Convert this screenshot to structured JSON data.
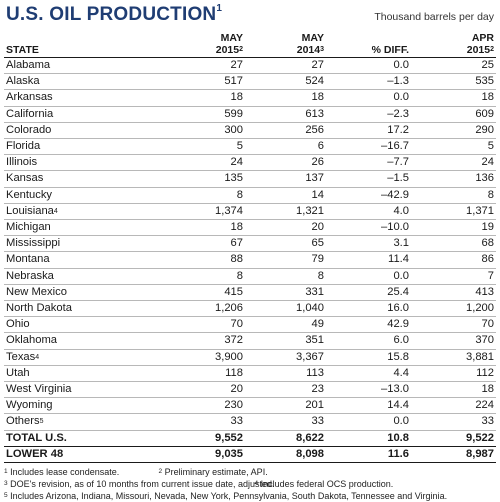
{
  "title": "U.S. OIL PRODUCTION",
  "title_note": "1",
  "units": "Thousand barrels per day",
  "columns": {
    "state": "STATE",
    "may2015_line1": "MAY",
    "may2015_line2": "2015",
    "may2015_note": "2",
    "may2014_line1": "MAY",
    "may2014_line2": "2014",
    "may2014_note": "3",
    "diff_line2": "% DIFF.",
    "apr2015_line1": "APR",
    "apr2015_line2": "2015",
    "apr2015_note": "2"
  },
  "rows": [
    {
      "state": "Alabama",
      "note": "",
      "may2015": "27",
      "may2014": "27",
      "diff": "0.0",
      "apr2015": "25"
    },
    {
      "state": "Alaska",
      "note": "",
      "may2015": "517",
      "may2014": "524",
      "diff": "–1.3",
      "apr2015": "535"
    },
    {
      "state": "Arkansas",
      "note": "",
      "may2015": "18",
      "may2014": "18",
      "diff": "0.0",
      "apr2015": "18"
    },
    {
      "state": "California",
      "note": "",
      "may2015": "599",
      "may2014": "613",
      "diff": "–2.3",
      "apr2015": "609"
    },
    {
      "state": "Colorado",
      "note": "",
      "may2015": "300",
      "may2014": "256",
      "diff": "17.2",
      "apr2015": "290"
    },
    {
      "state": "Florida",
      "note": "",
      "may2015": "5",
      "may2014": "6",
      "diff": "–16.7",
      "apr2015": "5"
    },
    {
      "state": "Illinois",
      "note": "",
      "may2015": "24",
      "may2014": "26",
      "diff": "–7.7",
      "apr2015": "24"
    },
    {
      "state": "Kansas",
      "note": "",
      "may2015": "135",
      "may2014": "137",
      "diff": "–1.5",
      "apr2015": "136"
    },
    {
      "state": "Kentucky",
      "note": "",
      "may2015": "8",
      "may2014": "14",
      "diff": "–42.9",
      "apr2015": "8"
    },
    {
      "state": "Louisiana",
      "note": "4",
      "may2015": "1,374",
      "may2014": "1,321",
      "diff": "4.0",
      "apr2015": "1,371"
    },
    {
      "state": "Michigan",
      "note": "",
      "may2015": "18",
      "may2014": "20",
      "diff": "–10.0",
      "apr2015": "19"
    },
    {
      "state": "Mississippi",
      "note": "",
      "may2015": "67",
      "may2014": "65",
      "diff": "3.1",
      "apr2015": "68"
    },
    {
      "state": "Montana",
      "note": "",
      "may2015": "88",
      "may2014": "79",
      "diff": "11.4",
      "apr2015": "86"
    },
    {
      "state": "Nebraska",
      "note": "",
      "may2015": "8",
      "may2014": "8",
      "diff": "0.0",
      "apr2015": "7"
    },
    {
      "state": "New Mexico",
      "note": "",
      "may2015": "415",
      "may2014": "331",
      "diff": "25.4",
      "apr2015": "413"
    },
    {
      "state": "North Dakota",
      "note": "",
      "may2015": "1,206",
      "may2014": "1,040",
      "diff": "16.0",
      "apr2015": "1,200"
    },
    {
      "state": "Ohio",
      "note": "",
      "may2015": "70",
      "may2014": "49",
      "diff": "42.9",
      "apr2015": "70"
    },
    {
      "state": "Oklahoma",
      "note": "",
      "may2015": "372",
      "may2014": "351",
      "diff": "6.0",
      "apr2015": "370"
    },
    {
      "state": "Texas",
      "note": "4",
      "may2015": "3,900",
      "may2014": "3,367",
      "diff": "15.8",
      "apr2015": "3,881"
    },
    {
      "state": "Utah",
      "note": "",
      "may2015": "118",
      "may2014": "113",
      "diff": "4.4",
      "apr2015": "112"
    },
    {
      "state": "West Virginia",
      "note": "",
      "may2015": "20",
      "may2014": "23",
      "diff": "–13.0",
      "apr2015": "18"
    },
    {
      "state": "Wyoming",
      "note": "",
      "may2015": "230",
      "may2014": "201",
      "diff": "14.4",
      "apr2015": "224"
    },
    {
      "state": "Others",
      "note": "5",
      "may2015": "33",
      "may2014": "33",
      "diff": "0.0",
      "apr2015": "33"
    }
  ],
  "totals": [
    {
      "state": "TOTAL U.S.",
      "may2015": "9,552",
      "may2014": "8,622",
      "diff": "10.8",
      "apr2015": "9,522"
    },
    {
      "state": "LOWER 48",
      "may2015": "9,035",
      "may2014": "8,098",
      "diff": "11.6",
      "apr2015": "8,987"
    }
  ],
  "footnotes": {
    "n1_mark": "1",
    "n1": "Includes lease condensate.",
    "n2_mark": "2",
    "n2": "Preliminary estimate, API.",
    "n3_mark": "3",
    "n3": "DOE's revision, as of 10 months from current issue date, adjusted.",
    "n4_mark": "4",
    "n4": "Includes federal OCS production.",
    "n5_mark": "5",
    "n5": "Includes Arizona, Indiana, Missouri, Nevada, New York, Pennsylvania, South Dakota, Tennessee and Virginia."
  }
}
